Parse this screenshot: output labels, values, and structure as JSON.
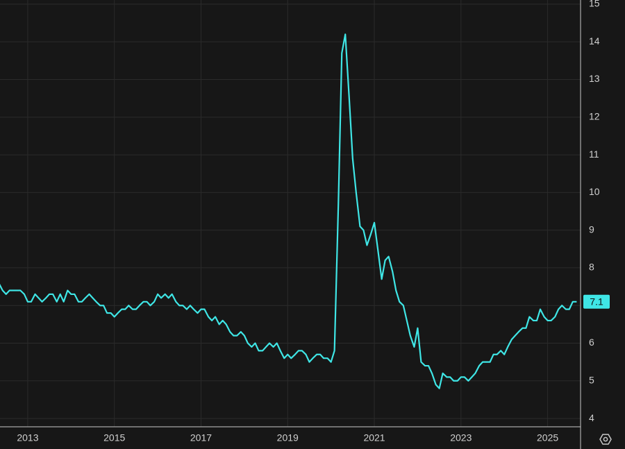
{
  "chart_data": {
    "type": "line",
    "x": [
      2012.33,
      2012.42,
      2012.5,
      2012.58,
      2012.67,
      2012.75,
      2012.83,
      2012.92,
      2013,
      2013.08,
      2013.17,
      2013.25,
      2013.33,
      2013.42,
      2013.5,
      2013.58,
      2013.67,
      2013.75,
      2013.83,
      2013.92,
      2014,
      2014.08,
      2014.17,
      2014.25,
      2014.33,
      2014.42,
      2014.5,
      2014.58,
      2014.67,
      2014.75,
      2014.83,
      2014.92,
      2015,
      2015.08,
      2015.17,
      2015.25,
      2015.33,
      2015.42,
      2015.5,
      2015.58,
      2015.67,
      2015.75,
      2015.83,
      2015.92,
      2016,
      2016.08,
      2016.17,
      2016.25,
      2016.33,
      2016.42,
      2016.5,
      2016.58,
      2016.67,
      2016.75,
      2016.83,
      2016.92,
      2017,
      2017.08,
      2017.17,
      2017.25,
      2017.33,
      2017.42,
      2017.5,
      2017.58,
      2017.67,
      2017.75,
      2017.83,
      2017.92,
      2018,
      2018.08,
      2018.17,
      2018.25,
      2018.33,
      2018.42,
      2018.5,
      2018.58,
      2018.67,
      2018.75,
      2018.83,
      2018.92,
      2019,
      2019.08,
      2019.17,
      2019.25,
      2019.33,
      2019.42,
      2019.5,
      2019.58,
      2019.67,
      2019.75,
      2019.83,
      2019.92,
      2020,
      2020.08,
      2020.17,
      2020.25,
      2020.33,
      2020.42,
      2020.5,
      2020.58,
      2020.67,
      2020.75,
      2020.83,
      2020.92,
      2021,
      2021.08,
      2021.17,
      2021.25,
      2021.33,
      2021.42,
      2021.5,
      2021.58,
      2021.67,
      2021.75,
      2021.83,
      2021.92,
      2022,
      2022.08,
      2022.17,
      2022.25,
      2022.33,
      2022.42,
      2022.5,
      2022.58,
      2022.67,
      2022.75,
      2022.83,
      2022.92,
      2023,
      2023.08,
      2023.17,
      2023.25,
      2023.33,
      2023.42,
      2023.5,
      2023.58,
      2023.67,
      2023.75,
      2023.83,
      2023.92,
      2024,
      2024.08,
      2024.17,
      2024.25,
      2024.33,
      2024.42,
      2024.5,
      2024.58,
      2024.67,
      2024.75,
      2024.83,
      2024.92,
      2025,
      2025.08,
      2025.17,
      2025.25,
      2025.33,
      2025.42,
      2025.5,
      2025.58,
      2025.67
    ],
    "series": [
      {
        "color": "#3fe6e6",
        "values": [
          7.6,
          7.4,
          7.3,
          7.4,
          7.4,
          7.4,
          7.4,
          7.3,
          7.1,
          7.1,
          7.3,
          7.2,
          7.1,
          7.2,
          7.3,
          7.3,
          7.1,
          7.3,
          7.1,
          7.4,
          7.3,
          7.3,
          7.1,
          7.1,
          7.2,
          7.3,
          7.2,
          7.1,
          7.0,
          7.0,
          6.8,
          6.8,
          6.7,
          6.8,
          6.9,
          6.9,
          7.0,
          6.9,
          6.9,
          7.0,
          7.1,
          7.1,
          7.0,
          7.1,
          7.3,
          7.2,
          7.3,
          7.2,
          7.3,
          7.1,
          7.0,
          7.0,
          6.9,
          7.0,
          6.9,
          6.8,
          6.9,
          6.9,
          6.7,
          6.6,
          6.7,
          6.5,
          6.6,
          6.5,
          6.3,
          6.2,
          6.2,
          6.3,
          6.2,
          6.0,
          5.9,
          6.0,
          5.8,
          5.8,
          5.9,
          6.0,
          5.9,
          6.0,
          5.8,
          5.6,
          5.7,
          5.6,
          5.7,
          5.8,
          5.8,
          5.7,
          5.5,
          5.6,
          5.7,
          5.7,
          5.6,
          5.6,
          5.5,
          5.8,
          9.7,
          13.7,
          14.2,
          12.5,
          10.9,
          10.0,
          9.1,
          9.0,
          8.6,
          8.9,
          9.2,
          8.5,
          7.7,
          8.2,
          8.3,
          7.9,
          7.4,
          7.1,
          7.0,
          6.6,
          6.2,
          5.9,
          6.4,
          5.5,
          5.4,
          5.4,
          5.2,
          4.9,
          4.8,
          5.2,
          5.1,
          5.1,
          5.0,
          5.0,
          5.1,
          5.1,
          5.0,
          5.1,
          5.2,
          5.4,
          5.5,
          5.5,
          5.5,
          5.7,
          5.7,
          5.8,
          5.7,
          5.9,
          6.1,
          6.2,
          6.3,
          6.4,
          6.4,
          6.7,
          6.6,
          6.6,
          6.9,
          6.7,
          6.6,
          6.6,
          6.7,
          6.9,
          7.0,
          6.9,
          6.9,
          7.1,
          7.1
        ]
      }
    ],
    "xlim": [
      2012.36,
      2025.76
    ],
    "xticks": [
      2013,
      2015,
      2017,
      2019,
      2021,
      2023,
      2025
    ],
    "ylim": [
      3.78,
      15.11
    ],
    "yticks": [
      4,
      5,
      6,
      7,
      8,
      9,
      10,
      11,
      12,
      13,
      14,
      15
    ],
    "grid": true
  }
}
